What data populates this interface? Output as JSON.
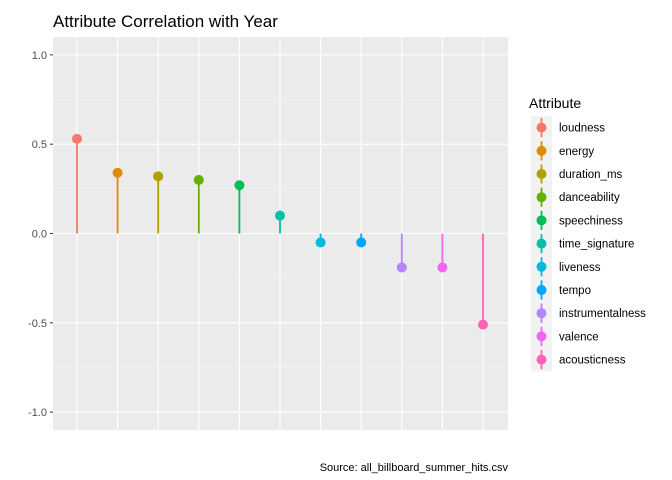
{
  "chart_data": {
    "type": "lollipop",
    "title": "Attribute Correlation with Year",
    "caption": "Source: all_billboard_summer_hits.csv",
    "xlabel": "",
    "ylabel": "",
    "ylim": [
      -1.1,
      1.1
    ],
    "yticks": [
      -1.0,
      -0.5,
      0.0,
      0.5,
      1.0
    ],
    "ytick_labels": [
      "-1.0",
      "-0.5",
      "0.0",
      "0.5",
      "1.0"
    ],
    "grid": true,
    "legend": {
      "title": "Attribute",
      "placement": "right"
    },
    "series": [
      {
        "name": "loudness",
        "value": 0.53,
        "color": "#F8766D"
      },
      {
        "name": "energy",
        "value": 0.34,
        "color": "#DB8E00"
      },
      {
        "name": "duration_ms",
        "value": 0.32,
        "color": "#AEA200"
      },
      {
        "name": "danceability",
        "value": 0.3,
        "color": "#64B200"
      },
      {
        "name": "speechiness",
        "value": 0.27,
        "color": "#00BD5C"
      },
      {
        "name": "time_signature",
        "value": 0.1,
        "color": "#00C1A7"
      },
      {
        "name": "liveness",
        "value": -0.05,
        "color": "#00BADE"
      },
      {
        "name": "tempo",
        "value": -0.05,
        "color": "#00A6FF"
      },
      {
        "name": "instrumentalness",
        "value": -0.19,
        "color": "#B385FF"
      },
      {
        "name": "valence",
        "value": -0.19,
        "color": "#EF67EB"
      },
      {
        "name": "acousticness",
        "value": -0.51,
        "color": "#FF63B6"
      }
    ]
  }
}
